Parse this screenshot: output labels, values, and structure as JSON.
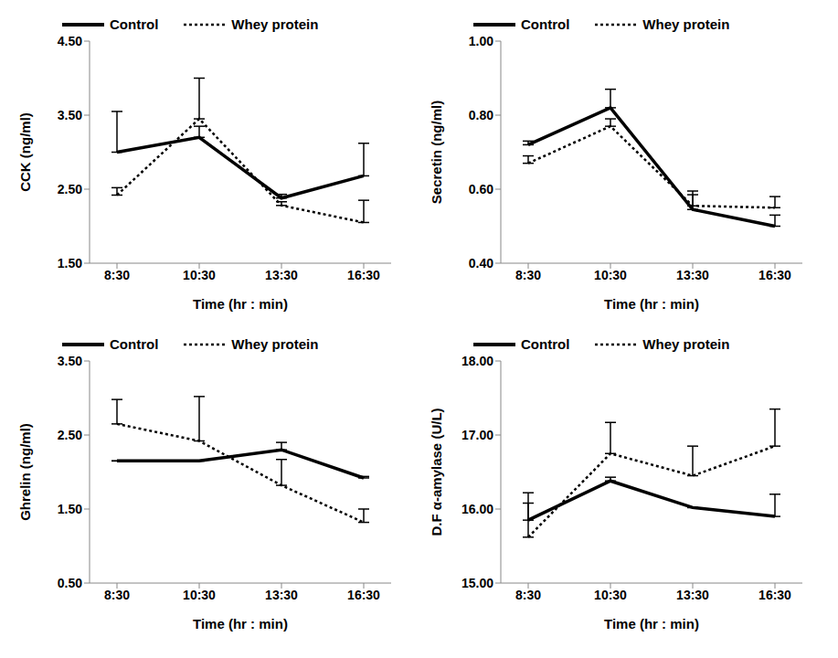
{
  "chart_data": [
    {
      "type": "line",
      "x_label": "Time (hr : min)",
      "y_label": "CCK (ng/ml)",
      "categories": [
        "8:30",
        "10:30",
        "13:30",
        "16:30"
      ],
      "ylim": [
        1.5,
        4.5
      ],
      "yticks": [
        {
          "value": 1.5,
          "label": "1.50"
        },
        {
          "value": 2.5,
          "label": "2.50"
        },
        {
          "value": 3.5,
          "label": "3.50"
        },
        {
          "value": 4.5,
          "label": "4.50"
        }
      ],
      "grid": false,
      "legend": "top",
      "series": [
        {
          "name": "Control",
          "color": "#000000",
          "line_style": "solid",
          "values": [
            3.0,
            3.2,
            2.38,
            2.68
          ],
          "errors": [
            0.55,
            0.15,
            0.05,
            0.44
          ]
        },
        {
          "name": "Whey protein",
          "color": "#000000",
          "line_style": "dotted",
          "values": [
            2.42,
            3.45,
            2.28,
            2.05
          ],
          "errors": [
            0.1,
            0.55,
            0.05,
            0.3
          ]
        }
      ]
    },
    {
      "type": "line",
      "x_label": "Time (hr : min)",
      "y_label": "Secretin (ng/ml)",
      "categories": [
        "8:30",
        "10:30",
        "13:30",
        "16:30"
      ],
      "ylim": [
        0.4,
        1.0
      ],
      "yticks": [
        {
          "value": 0.4,
          "label": "0.40"
        },
        {
          "value": 0.6,
          "label": "0.60"
        },
        {
          "value": 0.8,
          "label": "0.80"
        },
        {
          "value": 1.0,
          "label": "1.00"
        }
      ],
      "grid": false,
      "legend": "top",
      "series": [
        {
          "name": "Control",
          "color": "#000000",
          "line_style": "solid",
          "values": [
            0.72,
            0.82,
            0.545,
            0.5
          ],
          "errors": [
            0.01,
            0.05,
            0.05,
            0.03
          ]
        },
        {
          "name": "Whey protein",
          "color": "#000000",
          "line_style": "dotted",
          "values": [
            0.67,
            0.77,
            0.555,
            0.55
          ],
          "errors": [
            0.02,
            0.02,
            0.03,
            0.03
          ]
        }
      ]
    },
    {
      "type": "line",
      "x_label": "Time (hr : min)",
      "y_label": "Ghrelin (ng/ml)",
      "categories": [
        "8:30",
        "10:30",
        "13:30",
        "16:30"
      ],
      "ylim": [
        0.5,
        3.5
      ],
      "yticks": [
        {
          "value": 0.5,
          "label": "0.50"
        },
        {
          "value": 1.5,
          "label": "1.50"
        },
        {
          "value": 2.5,
          "label": "2.50"
        },
        {
          "value": 3.5,
          "label": "3.50"
        }
      ],
      "grid": false,
      "legend": "top",
      "series": [
        {
          "name": "Control",
          "color": "#000000",
          "line_style": "solid",
          "values": [
            2.15,
            2.15,
            2.3,
            1.92
          ],
          "errors": [
            0,
            0,
            0.1,
            0.02
          ]
        },
        {
          "name": "Whey protein",
          "color": "#000000",
          "line_style": "dotted",
          "values": [
            2.65,
            2.42,
            1.82,
            1.32
          ],
          "errors": [
            0.33,
            0.6,
            0.35,
            0.18
          ]
        }
      ]
    },
    {
      "type": "line",
      "x_label": "Time (hr : min)",
      "y_label": "D.F α-amylase (U/L)",
      "categories": [
        "8:30",
        "10:30",
        "13:30",
        "16:30"
      ],
      "ylim": [
        15.0,
        18.0
      ],
      "yticks": [
        {
          "value": 15.0,
          "label": "15.00"
        },
        {
          "value": 16.0,
          "label": "16.00"
        },
        {
          "value": 17.0,
          "label": "17.00"
        },
        {
          "value": 18.0,
          "label": "18.00"
        }
      ],
      "grid": false,
      "legend": "top",
      "series": [
        {
          "name": "Control",
          "color": "#000000",
          "line_style": "solid",
          "values": [
            15.85,
            16.38,
            16.02,
            15.9
          ],
          "errors": [
            0.23,
            0.05,
            0,
            0.3
          ]
        },
        {
          "name": "Whey protein",
          "color": "#000000",
          "line_style": "dotted",
          "values": [
            15.62,
            16.75,
            16.45,
            16.85
          ],
          "errors": [
            0.6,
            0.42,
            0.4,
            0.5
          ]
        }
      ]
    }
  ]
}
